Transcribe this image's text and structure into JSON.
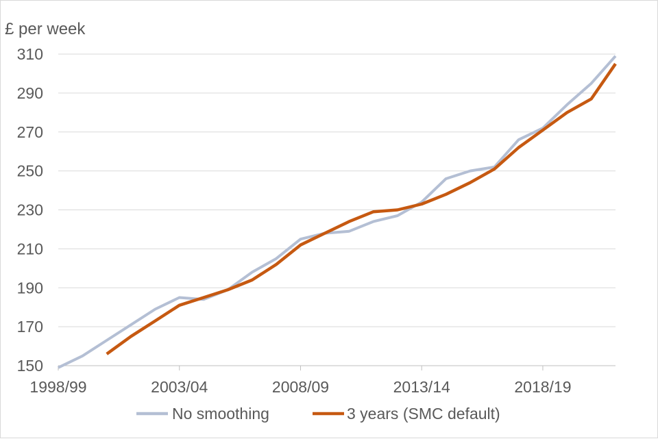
{
  "chart_data": {
    "type": "line",
    "ylabel": "£ per week",
    "ylim": [
      150,
      310
    ],
    "yticks": [
      150,
      170,
      190,
      210,
      230,
      250,
      270,
      290,
      310
    ],
    "x": [
      "1998/99",
      "1999/00",
      "2000/01",
      "2001/02",
      "2002/03",
      "2003/04",
      "2004/05",
      "2005/06",
      "2006/07",
      "2007/08",
      "2008/09",
      "2009/10",
      "2010/11",
      "2011/12",
      "2012/13",
      "2013/14",
      "2014/15",
      "2015/16",
      "2016/17",
      "2017/18",
      "2018/19",
      "2019/20",
      "2020/21",
      "2021/22"
    ],
    "xtick_labels": [
      "1998/99",
      "2003/04",
      "2008/09",
      "2013/14",
      "2018/19"
    ],
    "grid": true,
    "legend_position": "bottom",
    "series": [
      {
        "name": "No smoothing",
        "color": "#b4bfd4",
        "values": [
          149,
          155,
          163,
          171,
          179,
          185,
          184,
          189,
          198,
          205,
          215,
          218,
          219,
          224,
          227,
          234,
          246,
          250,
          252,
          266,
          272,
          284,
          295,
          309
        ]
      },
      {
        "name": "3 years (SMC default)",
        "color": "#c65911",
        "values": [
          null,
          null,
          156,
          165,
          173,
          181,
          185,
          189,
          194,
          202,
          212,
          218,
          224,
          229,
          230,
          233,
          238,
          244,
          251,
          262,
          271,
          280,
          287,
          305
        ]
      }
    ]
  }
}
